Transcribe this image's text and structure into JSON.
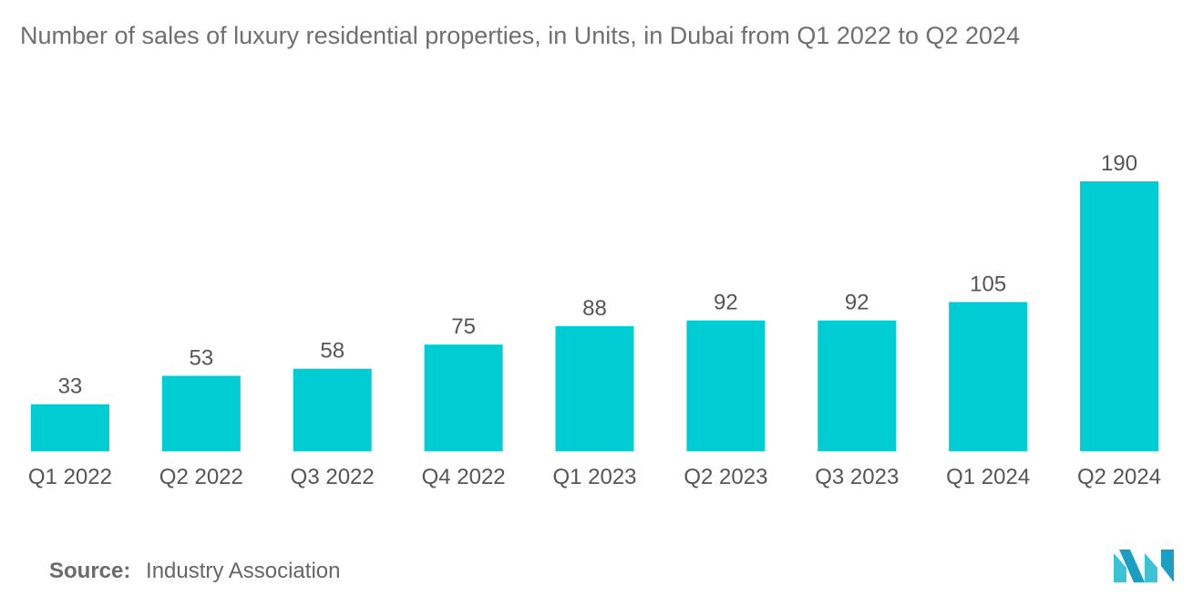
{
  "title": "Number of sales of luxury residential properties, in Units, in Dubai from Q1 2022 to Q2 2024",
  "chart_data": {
    "type": "bar",
    "categories": [
      "Q1 2022",
      "Q2 2022",
      "Q3 2022",
      "Q4 2022",
      "Q1 2023",
      "Q2 2023",
      "Q3 2023",
      "Q1 2024",
      "Q2 2024"
    ],
    "values": [
      33,
      53,
      58,
      75,
      88,
      92,
      92,
      105,
      190
    ],
    "title": "Number of sales of luxury residential properties, in Units, in Dubai from Q1 2022 to Q2 2024",
    "xlabel": "",
    "ylabel": "",
    "ylim": [
      0,
      190
    ],
    "grid": false,
    "bar_color": "#00ccd3"
  },
  "source": {
    "key": "Source:",
    "value": "Industry Association"
  },
  "logo": {
    "icon": "mordor-intelligence-logo-icon",
    "colors": [
      "#1b9ec4",
      "#3cc1d5"
    ]
  }
}
